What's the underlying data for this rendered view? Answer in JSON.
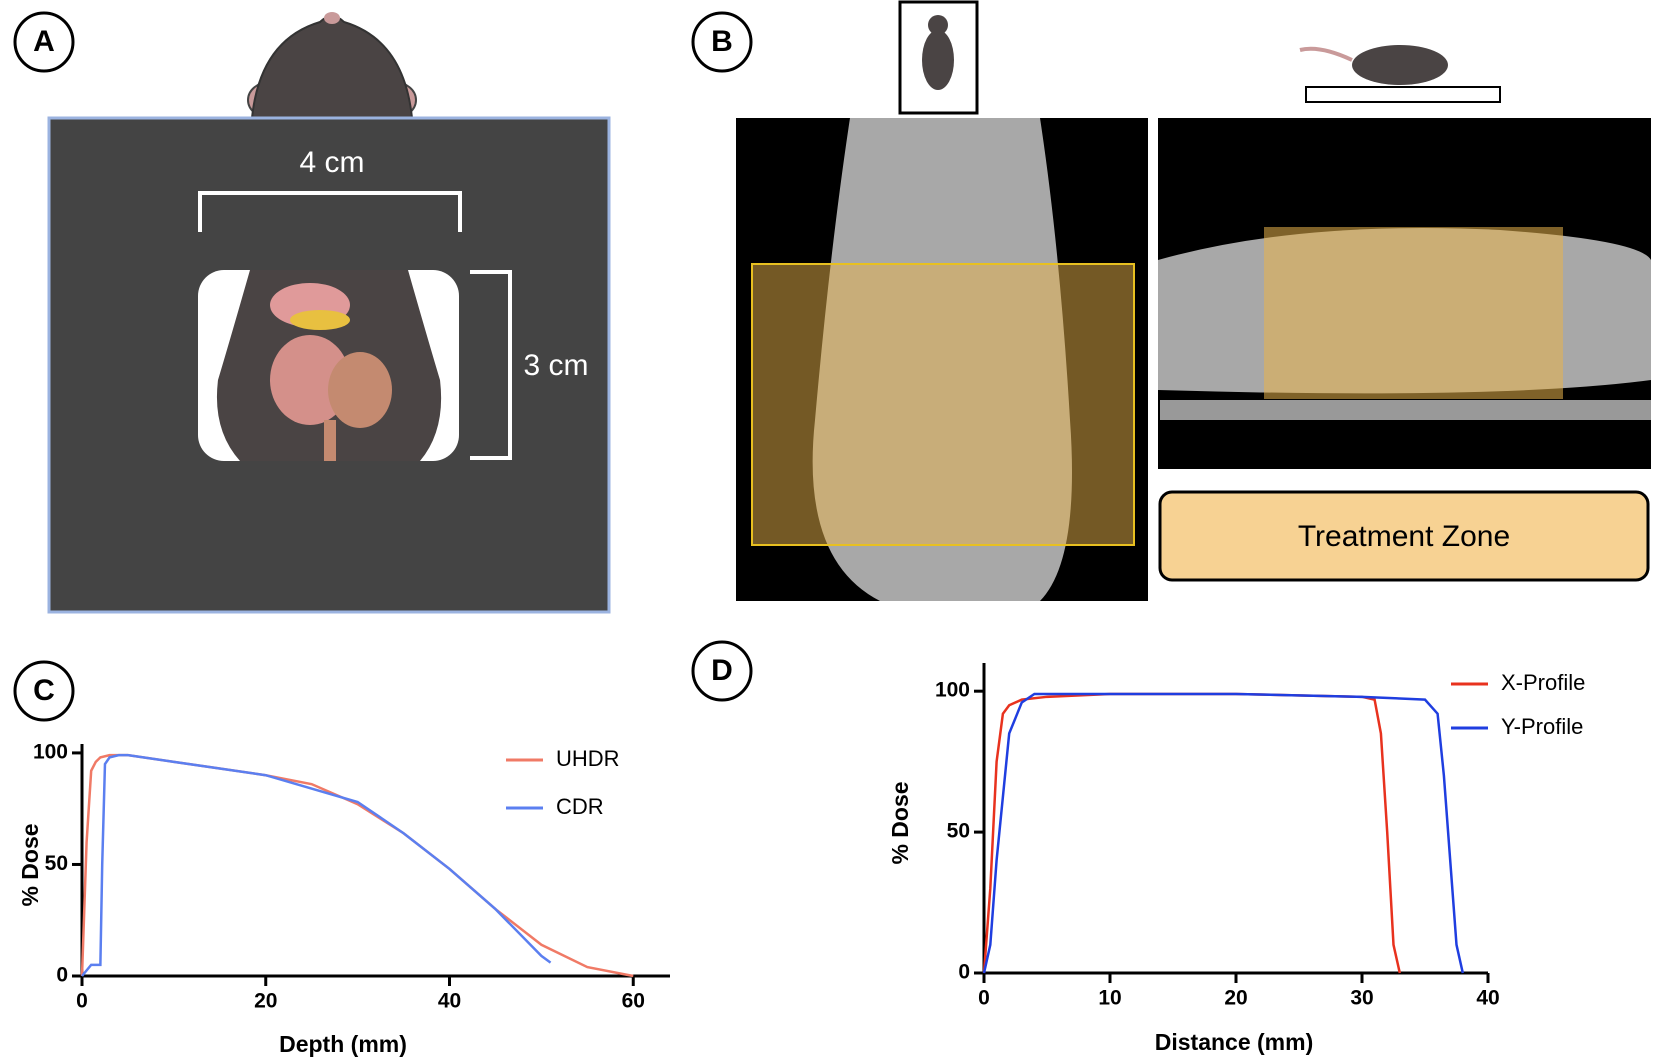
{
  "panel_labels": [
    "A",
    "B",
    "C",
    "D"
  ],
  "annotations": {
    "width": "4 cm",
    "height": "3 cm",
    "zone": "Treatment Zone"
  },
  "chart_data": [
    {
      "type": "line",
      "x_label": "Depth (mm)",
      "y_label": "% Dose",
      "xlim": [
        0,
        64
      ],
      "xticks": [
        0,
        20,
        40,
        60
      ],
      "ylim": [
        0,
        104
      ],
      "yticks": [
        0,
        50,
        100
      ],
      "legend": "upper right",
      "series": [
        {
          "name": "UHDR",
          "color": "#f07a66",
          "x": [
            0,
            0.5,
            1,
            1.5,
            2,
            3,
            4,
            5,
            10,
            15,
            20,
            25,
            30,
            35,
            40,
            45,
            50,
            55,
            60
          ],
          "values": [
            0,
            60,
            92,
            96,
            98,
            99,
            99,
            99,
            96,
            93,
            90,
            86,
            77,
            64,
            48,
            30,
            14,
            4,
            0
          ]
        },
        {
          "name": "CDR",
          "color": "#5b7ff0",
          "x": [
            0,
            1,
            1.5,
            2,
            2.2,
            2.5,
            3,
            4,
            5,
            10,
            20,
            30,
            35,
            40,
            45,
            50,
            51
          ],
          "values": [
            0,
            5,
            5,
            5,
            50,
            95,
            98,
            99,
            99,
            96,
            90,
            78,
            64,
            48,
            30,
            9,
            6
          ]
        }
      ]
    },
    {
      "type": "line",
      "x_label": "Distance (mm)",
      "y_label": "% Dose",
      "xlim": [
        0,
        40
      ],
      "xticks": [
        0,
        10,
        20,
        30,
        40
      ],
      "ylim": [
        0,
        110
      ],
      "yticks": [
        0,
        50,
        100
      ],
      "legend": "upper right",
      "series": [
        {
          "name": "X-Profile",
          "color": "#e8321e",
          "x": [
            0,
            0.5,
            1,
            1.5,
            2,
            3,
            5,
            10,
            20,
            30,
            31,
            31.5,
            32,
            32.5,
            33
          ],
          "values": [
            0,
            30,
            75,
            92,
            95,
            97,
            98,
            99,
            99,
            98,
            97,
            85,
            50,
            10,
            0
          ]
        },
        {
          "name": "Y-Profile",
          "color": "#1f3ee0",
          "x": [
            0,
            0.5,
            1,
            2,
            3,
            4,
            10,
            20,
            30,
            35,
            36,
            36.5,
            37,
            37.5,
            38
          ],
          "values": [
            0,
            10,
            40,
            85,
            96,
            99,
            99,
            99,
            98,
            97,
            92,
            70,
            40,
            10,
            0
          ]
        }
      ]
    }
  ]
}
